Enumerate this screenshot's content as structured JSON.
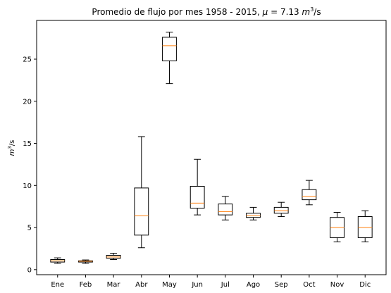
{
  "chart_data": {
    "type": "box",
    "title_main": "Promedio de flujo por mes 1958 - 2015, ",
    "title_mu": "μ",
    "title_value": " = 7.13 ",
    "title_unit_base": "m",
    "title_unit_exp": "3",
    "title_unit_tail": "/s",
    "ylabel_base": "m",
    "ylabel_exp": "3",
    "ylabel_tail": "/s",
    "xlabel": "",
    "ylim": [
      -0.6,
      29.6
    ],
    "yticks": [
      0,
      5,
      10,
      15,
      20,
      25
    ],
    "grid": false,
    "colors": {
      "box": "#000000",
      "median": "#ff7f0e",
      "axis": "#000000"
    },
    "categories": [
      "Ene",
      "Feb",
      "Mar",
      "Abr",
      "May",
      "Jun",
      "Jul",
      "Ago",
      "Sep",
      "Oct",
      "Nov",
      "Dic"
    ],
    "boxes": [
      {
        "whislo": 0.75,
        "q1": 0.9,
        "med": 1.05,
        "q3": 1.2,
        "whishi": 1.4
      },
      {
        "whislo": 0.75,
        "q1": 0.9,
        "med": 1.0,
        "q3": 1.05,
        "whishi": 1.15
      },
      {
        "whislo": 1.2,
        "q1": 1.35,
        "med": 1.5,
        "q3": 1.7,
        "whishi": 1.95
      },
      {
        "whislo": 2.6,
        "q1": 4.1,
        "med": 6.4,
        "q3": 9.7,
        "whishi": 15.8
      },
      {
        "whislo": 22.1,
        "q1": 24.8,
        "med": 26.6,
        "q3": 27.6,
        "whishi": 28.2
      },
      {
        "whislo": 6.5,
        "q1": 7.3,
        "med": 7.9,
        "q3": 9.9,
        "whishi": 13.1
      },
      {
        "whislo": 5.9,
        "q1": 6.5,
        "med": 6.9,
        "q3": 7.8,
        "whishi": 8.7
      },
      {
        "whislo": 5.9,
        "q1": 6.2,
        "med": 6.4,
        "q3": 6.7,
        "whishi": 7.4
      },
      {
        "whislo": 6.3,
        "q1": 6.7,
        "med": 7.0,
        "q3": 7.4,
        "whishi": 8.0
      },
      {
        "whislo": 7.7,
        "q1": 8.3,
        "med": 8.7,
        "q3": 9.5,
        "whishi": 10.6
      },
      {
        "whislo": 3.3,
        "q1": 3.8,
        "med": 5.0,
        "q3": 6.2,
        "whishi": 6.8
      },
      {
        "whislo": 3.3,
        "q1": 3.8,
        "med": 5.0,
        "q3": 6.3,
        "whishi": 7.0
      }
    ]
  }
}
